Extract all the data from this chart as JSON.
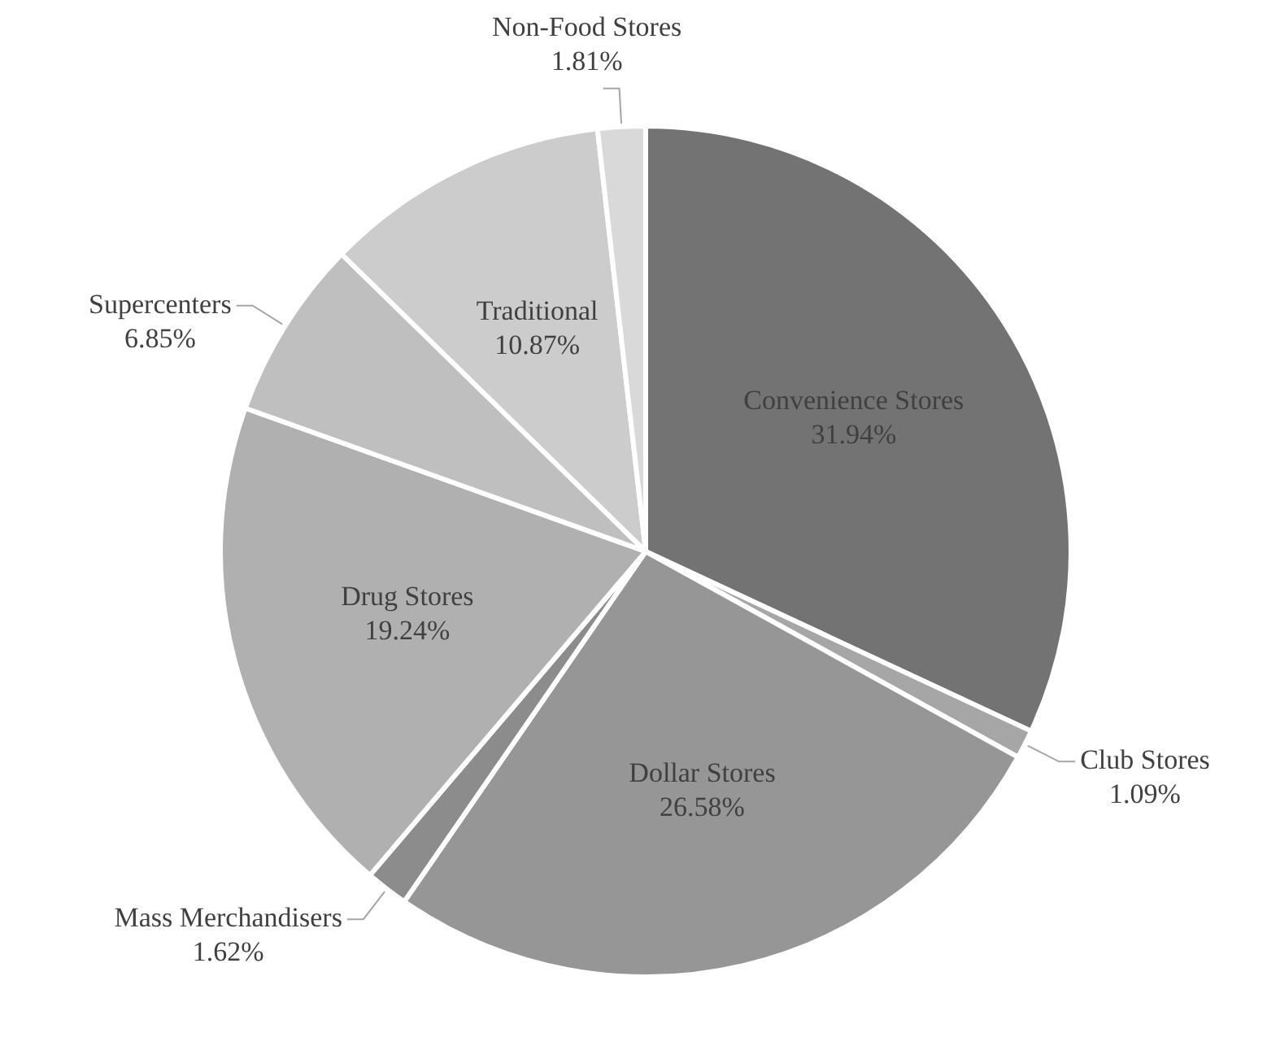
{
  "chart_data": {
    "type": "pie",
    "categories": [
      "Convenience Stores",
      "Club Stores",
      "Dollar Stores",
      "Mass Merchandisers",
      "Drug Stores",
      "Supercenters",
      "Traditional",
      "Non-Food Stores"
    ],
    "values": [
      31.94,
      1.09,
      26.58,
      1.62,
      19.24,
      6.85,
      10.87,
      1.81
    ],
    "value_labels": [
      "31.94%",
      "1.09%",
      "26.58%",
      "1.62%",
      "19.24%",
      "6.85%",
      "10.87%",
      "1.81%"
    ],
    "colors": [
      "#737373",
      "#a6a6a6",
      "#969696",
      "#8c8c8c",
      "#b0b0b0",
      "#bfbfbf",
      "#cccccc",
      "#d9d9d9"
    ],
    "legend": false
  }
}
